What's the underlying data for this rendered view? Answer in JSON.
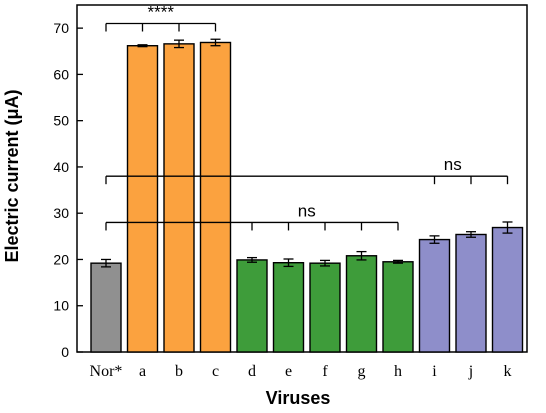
{
  "chart_data": {
    "type": "bar",
    "xlabel": "Viruses",
    "ylabel": "Electric current (μA)",
    "ylim": [
      0,
      75
    ],
    "yticks": [
      0,
      10,
      20,
      30,
      40,
      50,
      60,
      70
    ],
    "grid": false,
    "categories": [
      "Nor*",
      "a",
      "b",
      "c",
      "d",
      "e",
      "f",
      "g",
      "h",
      "i",
      "j",
      "k"
    ],
    "values": [
      19.2,
      66.2,
      66.6,
      66.9,
      19.9,
      19.3,
      19.2,
      20.8,
      19.5,
      24.3,
      25.4,
      26.9
    ],
    "errors": [
      0.8,
      0.2,
      0.8,
      0.7,
      0.5,
      0.8,
      0.6,
      0.9,
      0.3,
      0.8,
      0.6,
      1.2
    ],
    "colors": [
      "#909090",
      "#FBA23F",
      "#FBA23F",
      "#FBA23F",
      "#3E9C3A",
      "#3E9C3A",
      "#3E9C3A",
      "#3E9C3A",
      "#3E9C3A",
      "#8E8ECA",
      "#8E8ECA",
      "#8E8ECA"
    ],
    "annotations": [
      {
        "label": "****",
        "from": 0,
        "to": 3,
        "ticks": [
          1,
          2
        ],
        "y": 71
      },
      {
        "label": "ns",
        "from": 0,
        "to": 11,
        "ticks": [
          9,
          10
        ],
        "y": 38
      },
      {
        "label": "ns",
        "from": 0,
        "to": 8,
        "ticks": [
          4,
          5,
          6,
          7
        ],
        "y": 28
      }
    ]
  }
}
